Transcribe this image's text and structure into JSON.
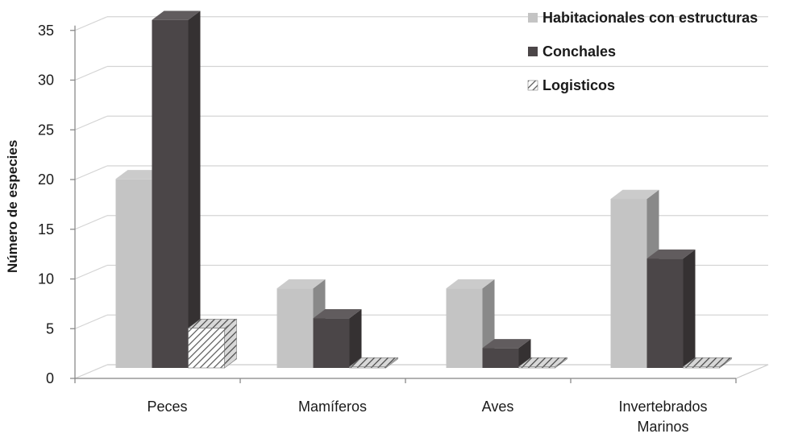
{
  "chart_data": {
    "type": "bar",
    "title": "",
    "xlabel": "",
    "ylabel": "Número de especies",
    "ylim": [
      0,
      35
    ],
    "yticks": [
      0,
      5,
      10,
      15,
      20,
      25,
      30,
      35
    ],
    "grid": true,
    "legend_position": "top-right",
    "categories": [
      [
        "Peces"
      ],
      [
        "Mamíferos"
      ],
      [
        "Aves"
      ],
      [
        "Invertebrados",
        "Marinos"
      ]
    ],
    "series": [
      {
        "name": "Habitacionales con estructuras",
        "values": [
          19,
          8,
          8,
          17
        ],
        "color": "#c4c4c4",
        "pattern": "solid"
      },
      {
        "name": "Conchales",
        "values": [
          35,
          5,
          2,
          11
        ],
        "color": "#4b4648",
        "pattern": "solid"
      },
      {
        "name": "Logisticos",
        "values": [
          4,
          0,
          0,
          0
        ],
        "color": "#ffffff",
        "pattern": "hatch"
      }
    ]
  }
}
